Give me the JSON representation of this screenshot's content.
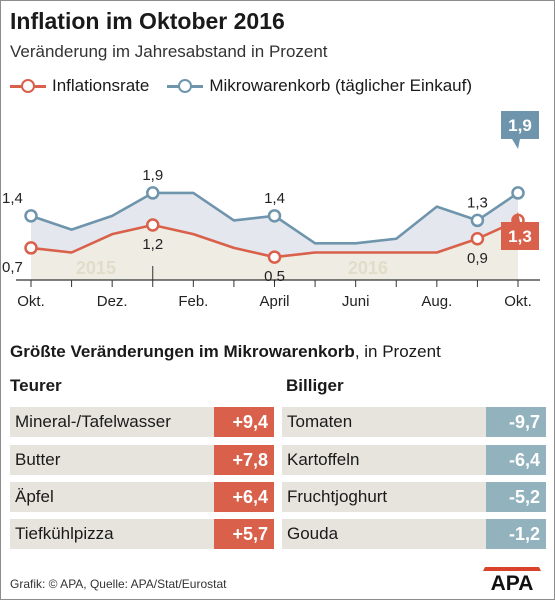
{
  "header": {
    "title": "Inflation im Oktober 2016",
    "subtitle": "Veränderung im Jahresabstand in Prozent"
  },
  "colors": {
    "inflation": "#d9604a",
    "mikro": "#6f95ad",
    "mikro_fill": "#e4e8ee",
    "base_fill": "#eeece3",
    "year_text": "#e2dcc8"
  },
  "chart_data": {
    "type": "line",
    "x": [
      "Okt. 2015",
      "Nov. 2015",
      "Dez. 2015",
      "Jän. 2016",
      "Feb. 2016",
      "März 2016",
      "April 2016",
      "Mai 2016",
      "Juni 2016",
      "Juli 2016",
      "Aug. 2016",
      "Sep. 2016",
      "Okt. 2016"
    ],
    "tick_labels": [
      "Okt.",
      "Dez.",
      "Feb.",
      "April",
      "Juni",
      "Aug.",
      "Okt."
    ],
    "year_labels": [
      "2015",
      "2016"
    ],
    "series": [
      {
        "name": "Inflationsrate",
        "values": [
          0.7,
          0.6,
          1.0,
          1.2,
          1.0,
          0.7,
          0.5,
          0.6,
          0.6,
          0.6,
          0.6,
          0.9,
          1.3
        ],
        "labels": [
          {
            "i": 0,
            "text": "0,7"
          },
          {
            "i": 3,
            "text": "1,2"
          },
          {
            "i": 6,
            "text": "0,5"
          },
          {
            "i": 11,
            "text": "0,9"
          }
        ],
        "last_label": "1,3"
      },
      {
        "name": "Mikrowarenkorb (täglicher Einkauf)",
        "values": [
          1.4,
          1.1,
          1.4,
          1.9,
          1.9,
          1.3,
          1.4,
          0.8,
          0.8,
          0.9,
          1.6,
          1.3,
          1.9
        ],
        "labels": [
          {
            "i": 0,
            "text": "1,4"
          },
          {
            "i": 3,
            "text": "1,9"
          },
          {
            "i": 6,
            "text": "1,4"
          },
          {
            "i": 11,
            "text": "1,3"
          }
        ],
        "last_label": "1,9"
      }
    ],
    "ylim": [
      0,
      2.4
    ],
    "grid": false
  },
  "changes": {
    "title_bold": "Größte Veränderungen im Mikrowarenkorb",
    "title_rest": ", in Prozent",
    "teurer": {
      "heading": "Teurer",
      "items": [
        {
          "name": "Mineral-/Tafelwasser",
          "value": "+9,4"
        },
        {
          "name": "Butter",
          "value": "+7,8"
        },
        {
          "name": "Äpfel",
          "value": "+6,4"
        },
        {
          "name": "Tiefkühlpizza",
          "value": "+5,7"
        }
      ]
    },
    "billiger": {
      "heading": "Billiger",
      "items": [
        {
          "name": "Tomaten",
          "value": "-9,7"
        },
        {
          "name": "Kartoffeln",
          "value": "-6,4"
        },
        {
          "name": "Fruchtjoghurt",
          "value": "-5,2"
        },
        {
          "name": "Gouda",
          "value": "-1,2"
        }
      ]
    }
  },
  "footer": {
    "credit": "Grafik: © APA, Quelle: APA/Stat/Eurostat",
    "logo_text": "APA"
  }
}
